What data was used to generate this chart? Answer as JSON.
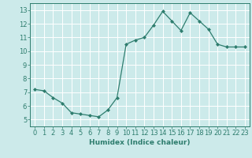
{
  "x": [
    0,
    1,
    2,
    3,
    4,
    5,
    6,
    7,
    8,
    9,
    10,
    11,
    12,
    13,
    14,
    15,
    16,
    17,
    18,
    19,
    20,
    21,
    22,
    23
  ],
  "y": [
    7.2,
    7.1,
    6.6,
    6.2,
    5.5,
    5.4,
    5.3,
    5.2,
    5.7,
    6.6,
    10.5,
    10.8,
    11.0,
    11.9,
    12.9,
    12.2,
    11.5,
    12.8,
    12.2,
    11.6,
    10.5,
    10.3,
    10.3,
    10.3
  ],
  "line_color": "#2e7d6e",
  "marker": "D",
  "marker_size": 2,
  "bg_color": "#cceaea",
  "grid_color": "#ffffff",
  "xlabel": "Humidex (Indice chaleur)",
  "xlim": [
    -0.5,
    23.5
  ],
  "ylim": [
    4.5,
    13.5
  ],
  "yticks": [
    5,
    6,
    7,
    8,
    9,
    10,
    11,
    12,
    13
  ],
  "xticks": [
    0,
    1,
    2,
    3,
    4,
    5,
    6,
    7,
    8,
    9,
    10,
    11,
    12,
    13,
    14,
    15,
    16,
    17,
    18,
    19,
    20,
    21,
    22,
    23
  ],
  "xlabel_fontsize": 6.5,
  "tick_fontsize": 6,
  "tick_color": "#2e7d6e",
  "axis_color": "#2e7d6e",
  "line_width": 0.9
}
